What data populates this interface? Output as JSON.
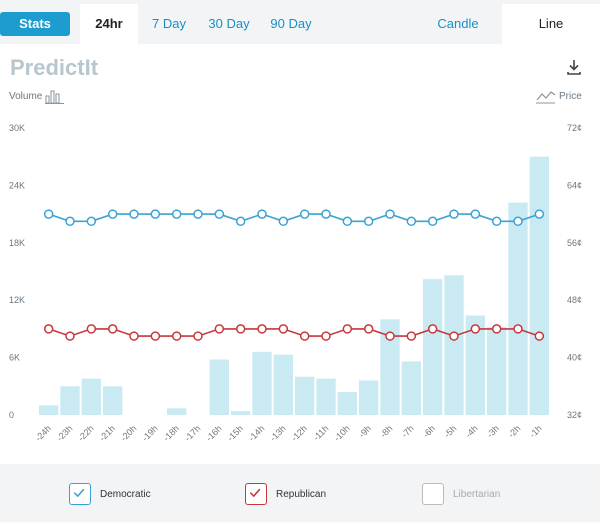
{
  "tabs": {
    "stats": "Stats",
    "h24": "24hr",
    "d7": "7 Day",
    "d30": "30 Day",
    "d90": "90 Day",
    "candle": "Candle",
    "line": "Line"
  },
  "logo_text": "PredictIt",
  "volume_label": "Volume",
  "price_label": "Price",
  "colors": {
    "accent": "#1c9ccf",
    "democratic": "#3aa3d4",
    "republican": "#c7383d",
    "libertarian": "#bbbbbb",
    "bar": "#c9e9f3"
  },
  "chart_data": {
    "type": "bar+line",
    "categories": [
      "-24h",
      "-23h",
      "-22h",
      "-21h",
      "-20h",
      "-19h",
      "-18h",
      "-17h",
      "-16h",
      "-15h",
      "-14h",
      "-13h",
      "-12h",
      "-11h",
      "-10h",
      "-9h",
      "-8h",
      "-7h",
      "-6h",
      "-5h",
      "-4h",
      "-3h",
      "-2h",
      "-1h"
    ],
    "volume": [
      1000,
      3000,
      3800,
      3000,
      0,
      0,
      700,
      0,
      5800,
      400,
      6600,
      6300,
      4000,
      3800,
      2400,
      3600,
      10000,
      5600,
      14200,
      14600,
      10400,
      9200,
      22200,
      27000
    ],
    "volume_axis": {
      "ticks": [
        "0",
        "6K",
        "12K",
        "18K",
        "24K",
        "30K"
      ],
      "range": [
        0,
        30000
      ]
    },
    "price_axis": {
      "ticks": [
        "32¢",
        "40¢",
        "48¢",
        "56¢",
        "64¢",
        "72¢"
      ],
      "range": [
        32,
        72
      ]
    },
    "series": [
      {
        "name": "Democratic",
        "values": [
          60,
          59,
          59,
          60,
          60,
          60,
          60,
          60,
          60,
          59,
          60,
          59,
          60,
          60,
          59,
          59,
          60,
          59,
          59,
          60,
          60,
          59,
          59,
          60
        ]
      },
      {
        "name": "Republican",
        "values": [
          44,
          43,
          44,
          44,
          43,
          43,
          43,
          43,
          44,
          44,
          44,
          44,
          43,
          43,
          44,
          44,
          43,
          43,
          44,
          43,
          44,
          44,
          44,
          43
        ]
      }
    ]
  },
  "legend": [
    {
      "label": "Democratic",
      "checked": true
    },
    {
      "label": "Republican",
      "checked": true
    },
    {
      "label": "Libertarian",
      "checked": false
    }
  ]
}
